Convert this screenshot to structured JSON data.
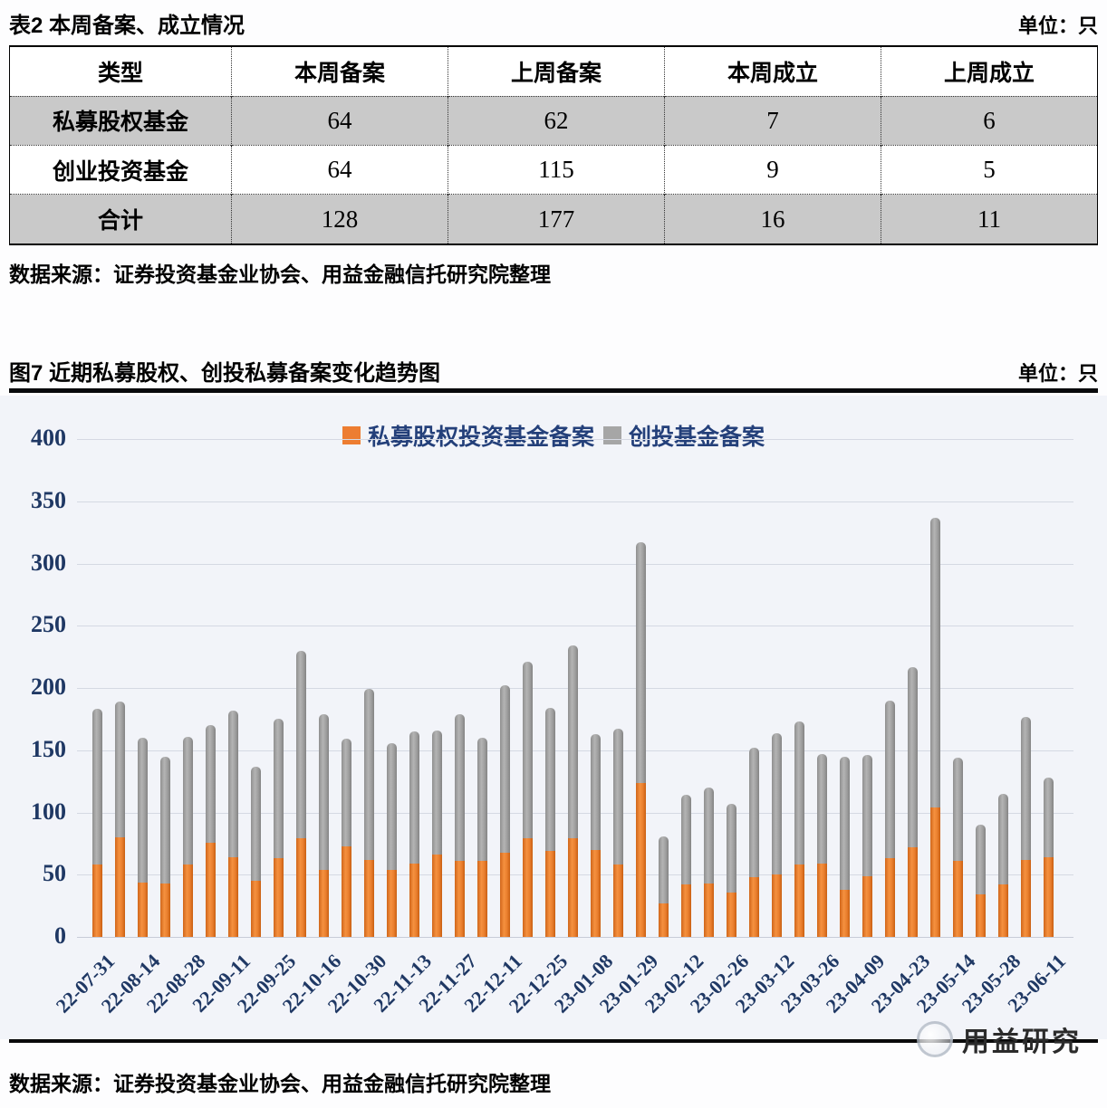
{
  "table_section": {
    "title": "表2 本周备案、成立情况",
    "unit": "单位：只",
    "columns": [
      "类型",
      "本周备案",
      "上周备案",
      "本周成立",
      "上周成立"
    ],
    "rows": [
      {
        "label": "私募股权基金",
        "values": [
          "64",
          "62",
          "7",
          "6"
        ],
        "shaded": true
      },
      {
        "label": "创业投资基金",
        "values": [
          "64",
          "115",
          "9",
          "5"
        ],
        "shaded": false
      },
      {
        "label": "合计",
        "values": [
          "128",
          "177",
          "16",
          "11"
        ],
        "shaded": true
      }
    ],
    "source": "数据来源：证券投资基金业协会、用益金融信托研究院整理"
  },
  "chart_section": {
    "title": "图7 近期私募股权、创投私募备案变化趋势图",
    "unit": "单位：只"
  },
  "chart_data": {
    "type": "bar",
    "stacked": true,
    "title": "图7 近期私募股权、创投私募备案变化趋势图",
    "unit": "只",
    "grid": true,
    "legend_position": "top",
    "ylim": [
      0,
      400
    ],
    "y_ticks": [
      400,
      350,
      300,
      250,
      200,
      150,
      100,
      50,
      0
    ],
    "categories": [
      "22-07-31",
      "",
      "22-08-14",
      "",
      "22-08-28",
      "",
      "22-09-11",
      "",
      "22-09-25",
      "",
      "22-10-16",
      "",
      "22-10-30",
      "",
      "22-11-13",
      "",
      "22-11-27",
      "",
      "22-12-11",
      "",
      "22-12-25",
      "",
      "23-01-08",
      "",
      "23-01-29",
      "",
      "23-02-12",
      "",
      "23-02-26",
      "",
      "23-03-12",
      "",
      "23-03-26",
      "",
      "23-04-09",
      "",
      "23-04-23",
      "",
      "23-05-14",
      "",
      "23-05-28",
      "",
      "23-06-11"
    ],
    "series": [
      {
        "name": "私募股权投资基金备案",
        "color": "#ED7D31",
        "values": [
          58,
          80,
          44,
          43,
          58,
          76,
          64,
          45,
          63,
          79,
          54,
          73,
          62,
          54,
          59,
          66,
          61,
          61,
          68,
          79,
          69,
          79,
          70,
          58,
          124,
          27,
          42,
          43,
          36,
          48,
          50,
          58,
          59,
          38,
          49,
          63,
          72,
          104,
          61,
          34,
          42,
          62,
          64
        ]
      },
      {
        "name": "创投基金备案",
        "color": "#A6A6A6",
        "values": [
          125,
          109,
          116,
          102,
          103,
          94,
          118,
          92,
          112,
          151,
          125,
          86,
          137,
          102,
          106,
          100,
          118,
          99,
          134,
          142,
          115,
          155,
          93,
          109,
          193,
          54,
          72,
          77,
          71,
          104,
          114,
          115,
          88,
          107,
          97,
          127,
          145,
          233,
          83,
          56,
          73,
          115,
          64
        ]
      }
    ]
  },
  "footer": {
    "watermark": "用益研究",
    "source": "数据来源：证券投资基金业协会、用益金融信托研究院整理"
  }
}
